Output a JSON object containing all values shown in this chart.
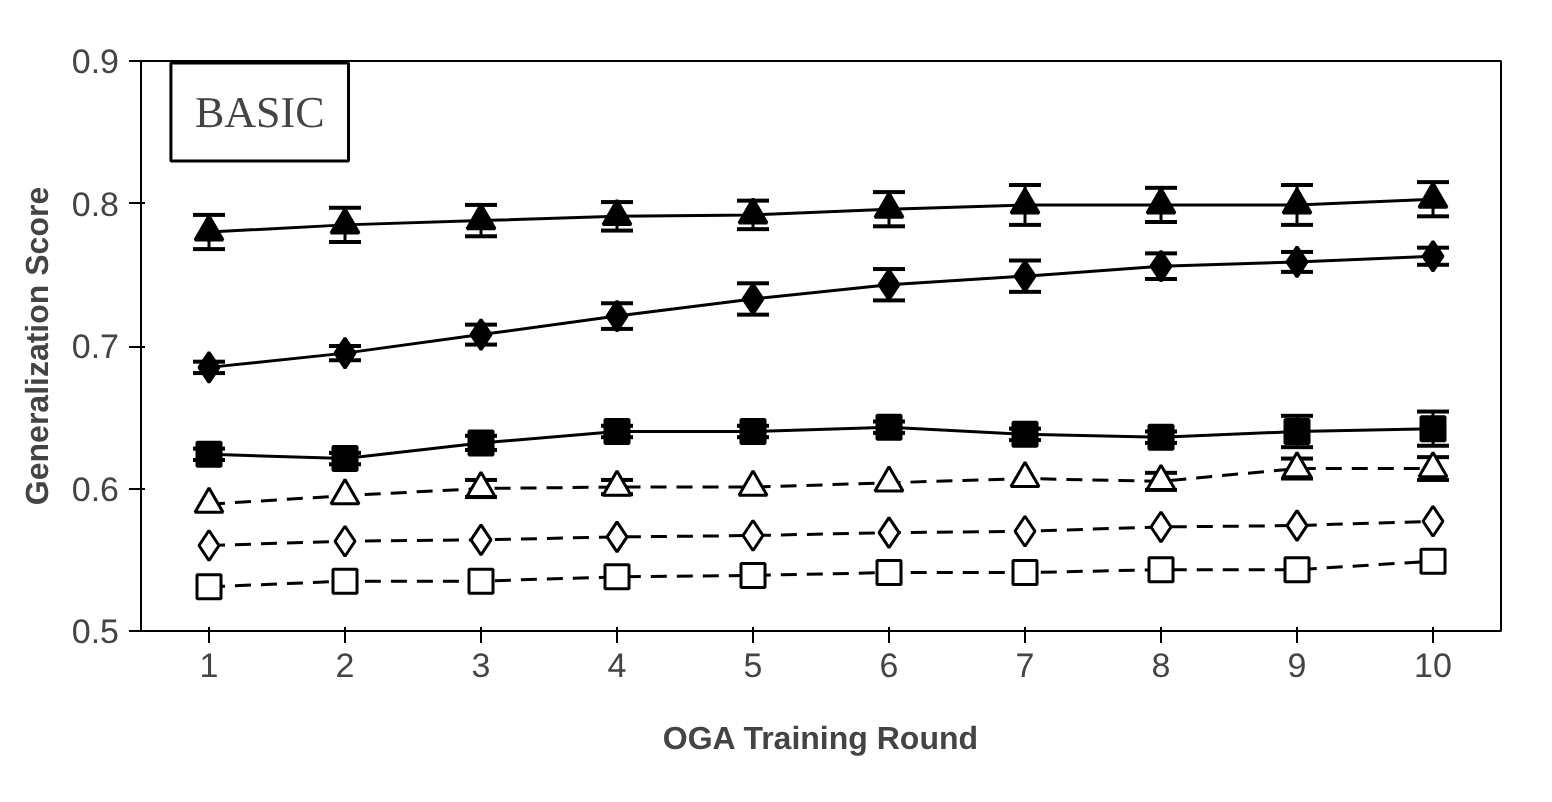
{
  "chart_data": {
    "type": "line",
    "xlabel": "OGA Training Round",
    "ylabel": "Generalization Score",
    "annotations": [
      "BASIC"
    ],
    "categories": [
      "1",
      "2",
      "3",
      "4",
      "5",
      "6",
      "7",
      "8",
      "9",
      "10"
    ],
    "ylim": [
      0.5,
      0.9
    ],
    "yticks": [
      {
        "value": 0.5,
        "label": "0.5"
      },
      {
        "value": 0.6,
        "label": "0.6"
      },
      {
        "value": 0.7,
        "label": "0.7"
      },
      {
        "value": 0.8,
        "label": "0.8"
      },
      {
        "value": 0.9,
        "label": "0.9"
      }
    ],
    "grid": false,
    "series": [
      {
        "color": "#000000",
        "marker": "triangle",
        "line_style": "solid",
        "values": [
          0.78,
          0.785,
          0.788,
          0.791,
          0.792,
          0.796,
          0.799,
          0.799,
          0.799,
          0.803
        ],
        "errors": [
          0.012,
          0.012,
          0.011,
          0.01,
          0.01,
          0.012,
          0.014,
          0.012,
          0.014,
          0.012
        ]
      },
      {
        "color": "#000000",
        "marker": "diamond",
        "line_style": "solid",
        "values": [
          0.685,
          0.695,
          0.708,
          0.721,
          0.733,
          0.743,
          0.749,
          0.756,
          0.759,
          0.763
        ],
        "errors": [
          0.004,
          0.005,
          0.007,
          0.009,
          0.011,
          0.011,
          0.011,
          0.009,
          0.007,
          0.006
        ]
      },
      {
        "color": "#000000",
        "marker": "square",
        "line_style": "solid",
        "values": [
          0.624,
          0.621,
          0.632,
          0.64,
          0.64,
          0.643,
          0.638,
          0.636,
          0.64,
          0.642
        ],
        "errors": [
          0.004,
          0.004,
          0.005,
          0.004,
          0.004,
          0.004,
          0.004,
          0.004,
          0.011,
          0.012
        ]
      },
      {
        "color": "#000000",
        "marker": "triangle",
        "line_style": "dashed",
        "values": [
          0.589,
          0.595,
          0.6,
          0.601,
          0.601,
          0.604,
          0.607,
          0.605,
          0.614,
          0.614
        ],
        "errors": [
          null,
          null,
          0.006,
          0.005,
          null,
          null,
          null,
          0.006,
          0.007,
          0.008
        ]
      },
      {
        "color": "#000000",
        "marker": "diamond",
        "line_style": "dashed",
        "values": [
          0.56,
          0.563,
          0.564,
          0.566,
          0.567,
          0.569,
          0.57,
          0.573,
          0.574,
          0.577
        ]
      },
      {
        "color": "#000000",
        "marker": "square",
        "line_style": "dashed",
        "values": [
          0.531,
          0.535,
          0.535,
          0.538,
          0.539,
          0.541,
          0.541,
          0.543,
          0.543,
          0.549
        ]
      }
    ]
  }
}
